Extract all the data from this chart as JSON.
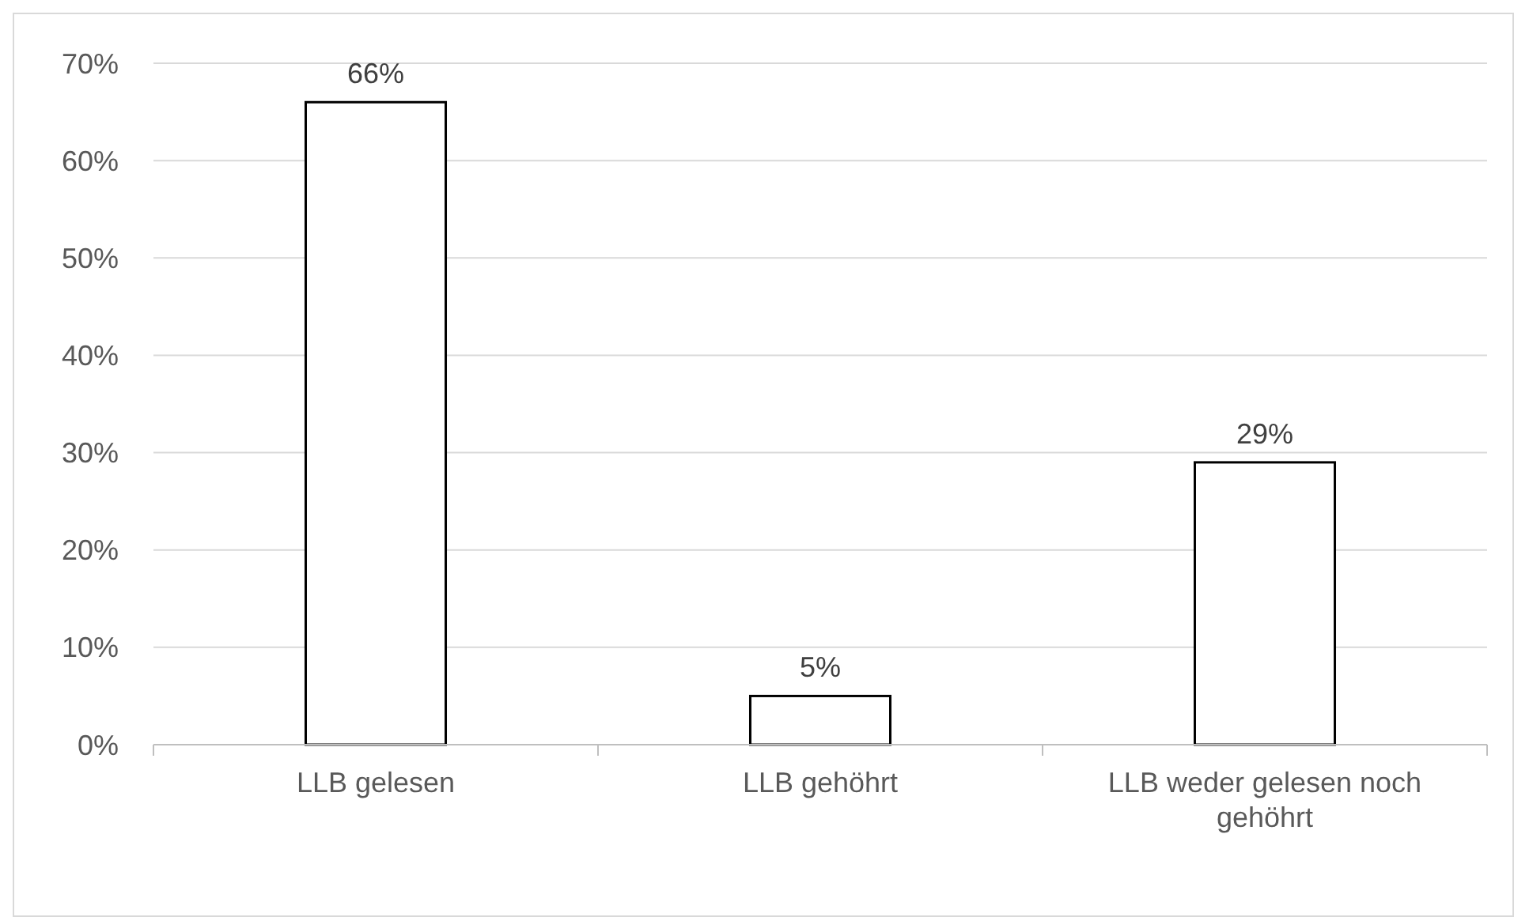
{
  "chart_data": {
    "type": "bar",
    "categories": [
      "LLB gelesen",
      "LLB gehöhrt",
      "LLB weder gelesen noch gehöhrt"
    ],
    "values": [
      66,
      5,
      29
    ],
    "value_labels": [
      "66%",
      "5%",
      "29%"
    ],
    "color": "#ffffff",
    "ylim": [
      0,
      70
    ],
    "yticks": [
      {
        "value": 0,
        "label": "0%"
      },
      {
        "value": 10,
        "label": "10%"
      },
      {
        "value": 20,
        "label": "20%"
      },
      {
        "value": 30,
        "label": "30%"
      },
      {
        "value": 40,
        "label": "40%"
      },
      {
        "value": 50,
        "label": "50%"
      },
      {
        "value": 60,
        "label": "60%"
      },
      {
        "value": 70,
        "label": "70%"
      }
    ],
    "grid": "y"
  }
}
